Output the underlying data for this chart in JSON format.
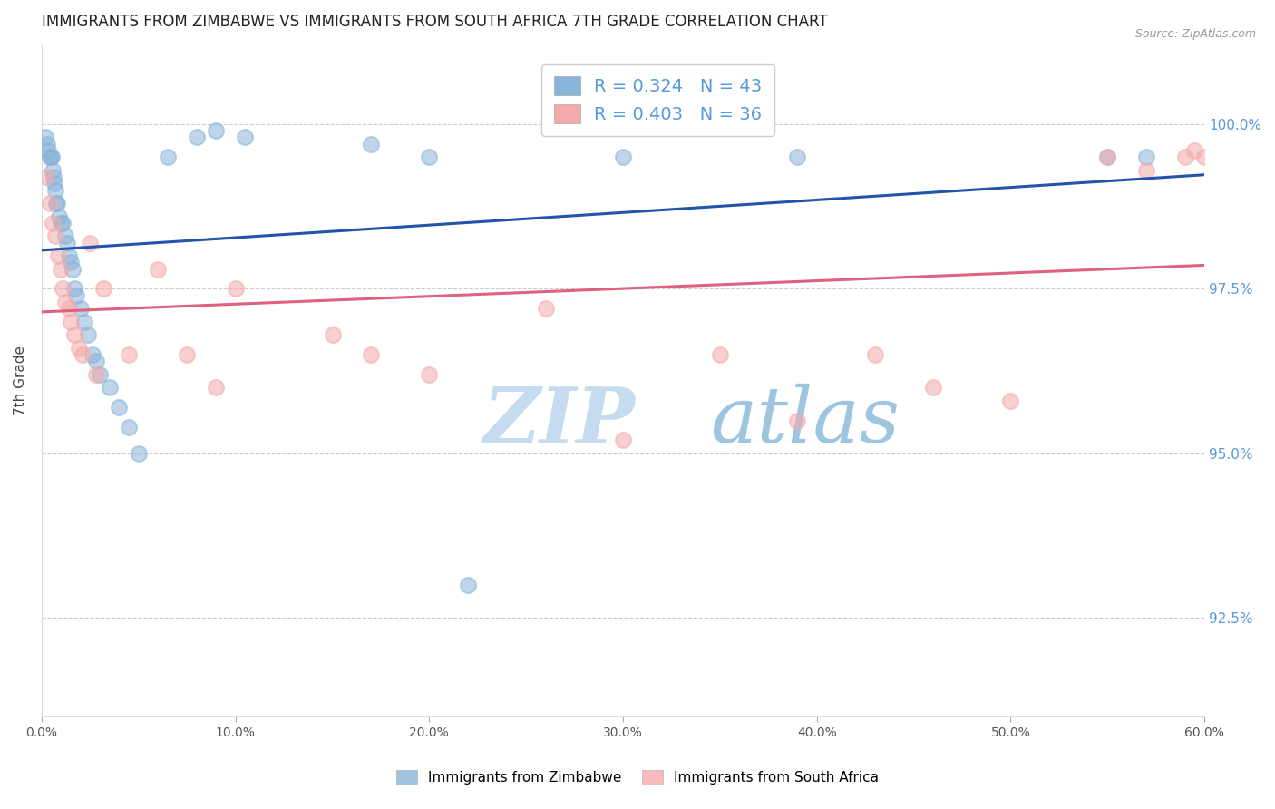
{
  "title": "IMMIGRANTS FROM ZIMBABWE VS IMMIGRANTS FROM SOUTH AFRICA 7TH GRADE CORRELATION CHART",
  "source_text": "Source: ZipAtlas.com",
  "ylabel": "7th Grade",
  "xlabel": "",
  "x_min": 0.0,
  "x_max": 60.0,
  "y_min": 91.0,
  "y_max": 101.2,
  "ytick_labels": [
    "92.5%",
    "95.0%",
    "97.5%",
    "100.0%"
  ],
  "ytick_values": [
    92.5,
    95.0,
    97.5,
    100.0
  ],
  "xtick_labels": [
    "0.0%",
    "10.0%",
    "20.0%",
    "30.0%",
    "40.0%",
    "50.0%",
    "60.0%"
  ],
  "xtick_values": [
    0.0,
    10.0,
    20.0,
    30.0,
    40.0,
    50.0,
    60.0
  ],
  "legend1_r": "0.324",
  "legend1_n": "43",
  "legend2_r": "0.403",
  "legend2_n": "36",
  "blue_color": "#89B4D9",
  "pink_color": "#F4AAAA",
  "blue_line_color": "#2255AA",
  "pink_line_color": "#E06080",
  "watermark_zip_color": "#C8DCF0",
  "watermark_atlas_color": "#A0C0DC",
  "title_color": "#222222",
  "axis_label_color": "#444444",
  "right_tick_color": "#5599DD",
  "grid_color": "#CCCCCC",
  "scatter_blue_x": [
    0.2,
    0.3,
    0.35,
    0.4,
    0.45,
    0.5,
    0.55,
    0.6,
    0.65,
    0.7,
    0.75,
    0.8,
    0.9,
    1.0,
    1.1,
    1.2,
    1.3,
    1.4,
    1.5,
    1.6,
    1.7,
    1.8,
    2.0,
    2.2,
    2.4,
    2.6,
    2.8,
    3.0,
    3.5,
    4.0,
    4.5,
    5.0,
    6.5,
    8.0,
    9.0,
    10.5,
    17.0,
    20.0,
    22.0,
    30.0,
    39.0,
    55.0,
    57.0
  ],
  "scatter_blue_y": [
    99.8,
    99.7,
    99.6,
    99.5,
    99.5,
    99.5,
    99.3,
    99.2,
    99.1,
    99.0,
    98.8,
    98.8,
    98.6,
    98.5,
    98.5,
    98.3,
    98.2,
    98.0,
    97.9,
    97.8,
    97.5,
    97.4,
    97.2,
    97.0,
    96.8,
    96.5,
    96.4,
    96.2,
    96.0,
    95.7,
    95.4,
    95.0,
    99.5,
    99.8,
    99.9,
    99.8,
    99.7,
    99.5,
    93.0,
    99.5,
    99.5,
    99.5,
    99.5
  ],
  "scatter_pink_x": [
    0.25,
    0.4,
    0.55,
    0.7,
    0.85,
    1.0,
    1.1,
    1.2,
    1.4,
    1.5,
    1.7,
    1.9,
    2.1,
    2.5,
    2.8,
    3.2,
    4.5,
    6.0,
    7.5,
    9.0,
    10.0,
    15.0,
    17.0,
    20.0,
    26.0,
    30.0,
    35.0,
    39.0,
    43.0,
    46.0,
    50.0,
    55.0,
    57.0,
    59.0,
    59.5,
    60.0
  ],
  "scatter_pink_y": [
    99.2,
    98.8,
    98.5,
    98.3,
    98.0,
    97.8,
    97.5,
    97.3,
    97.2,
    97.0,
    96.8,
    96.6,
    96.5,
    98.2,
    96.2,
    97.5,
    96.5,
    97.8,
    96.5,
    96.0,
    97.5,
    96.8,
    96.5,
    96.2,
    97.2,
    95.2,
    96.5,
    95.5,
    96.5,
    96.0,
    95.8,
    99.5,
    99.3,
    99.5,
    99.6,
    99.5
  ]
}
